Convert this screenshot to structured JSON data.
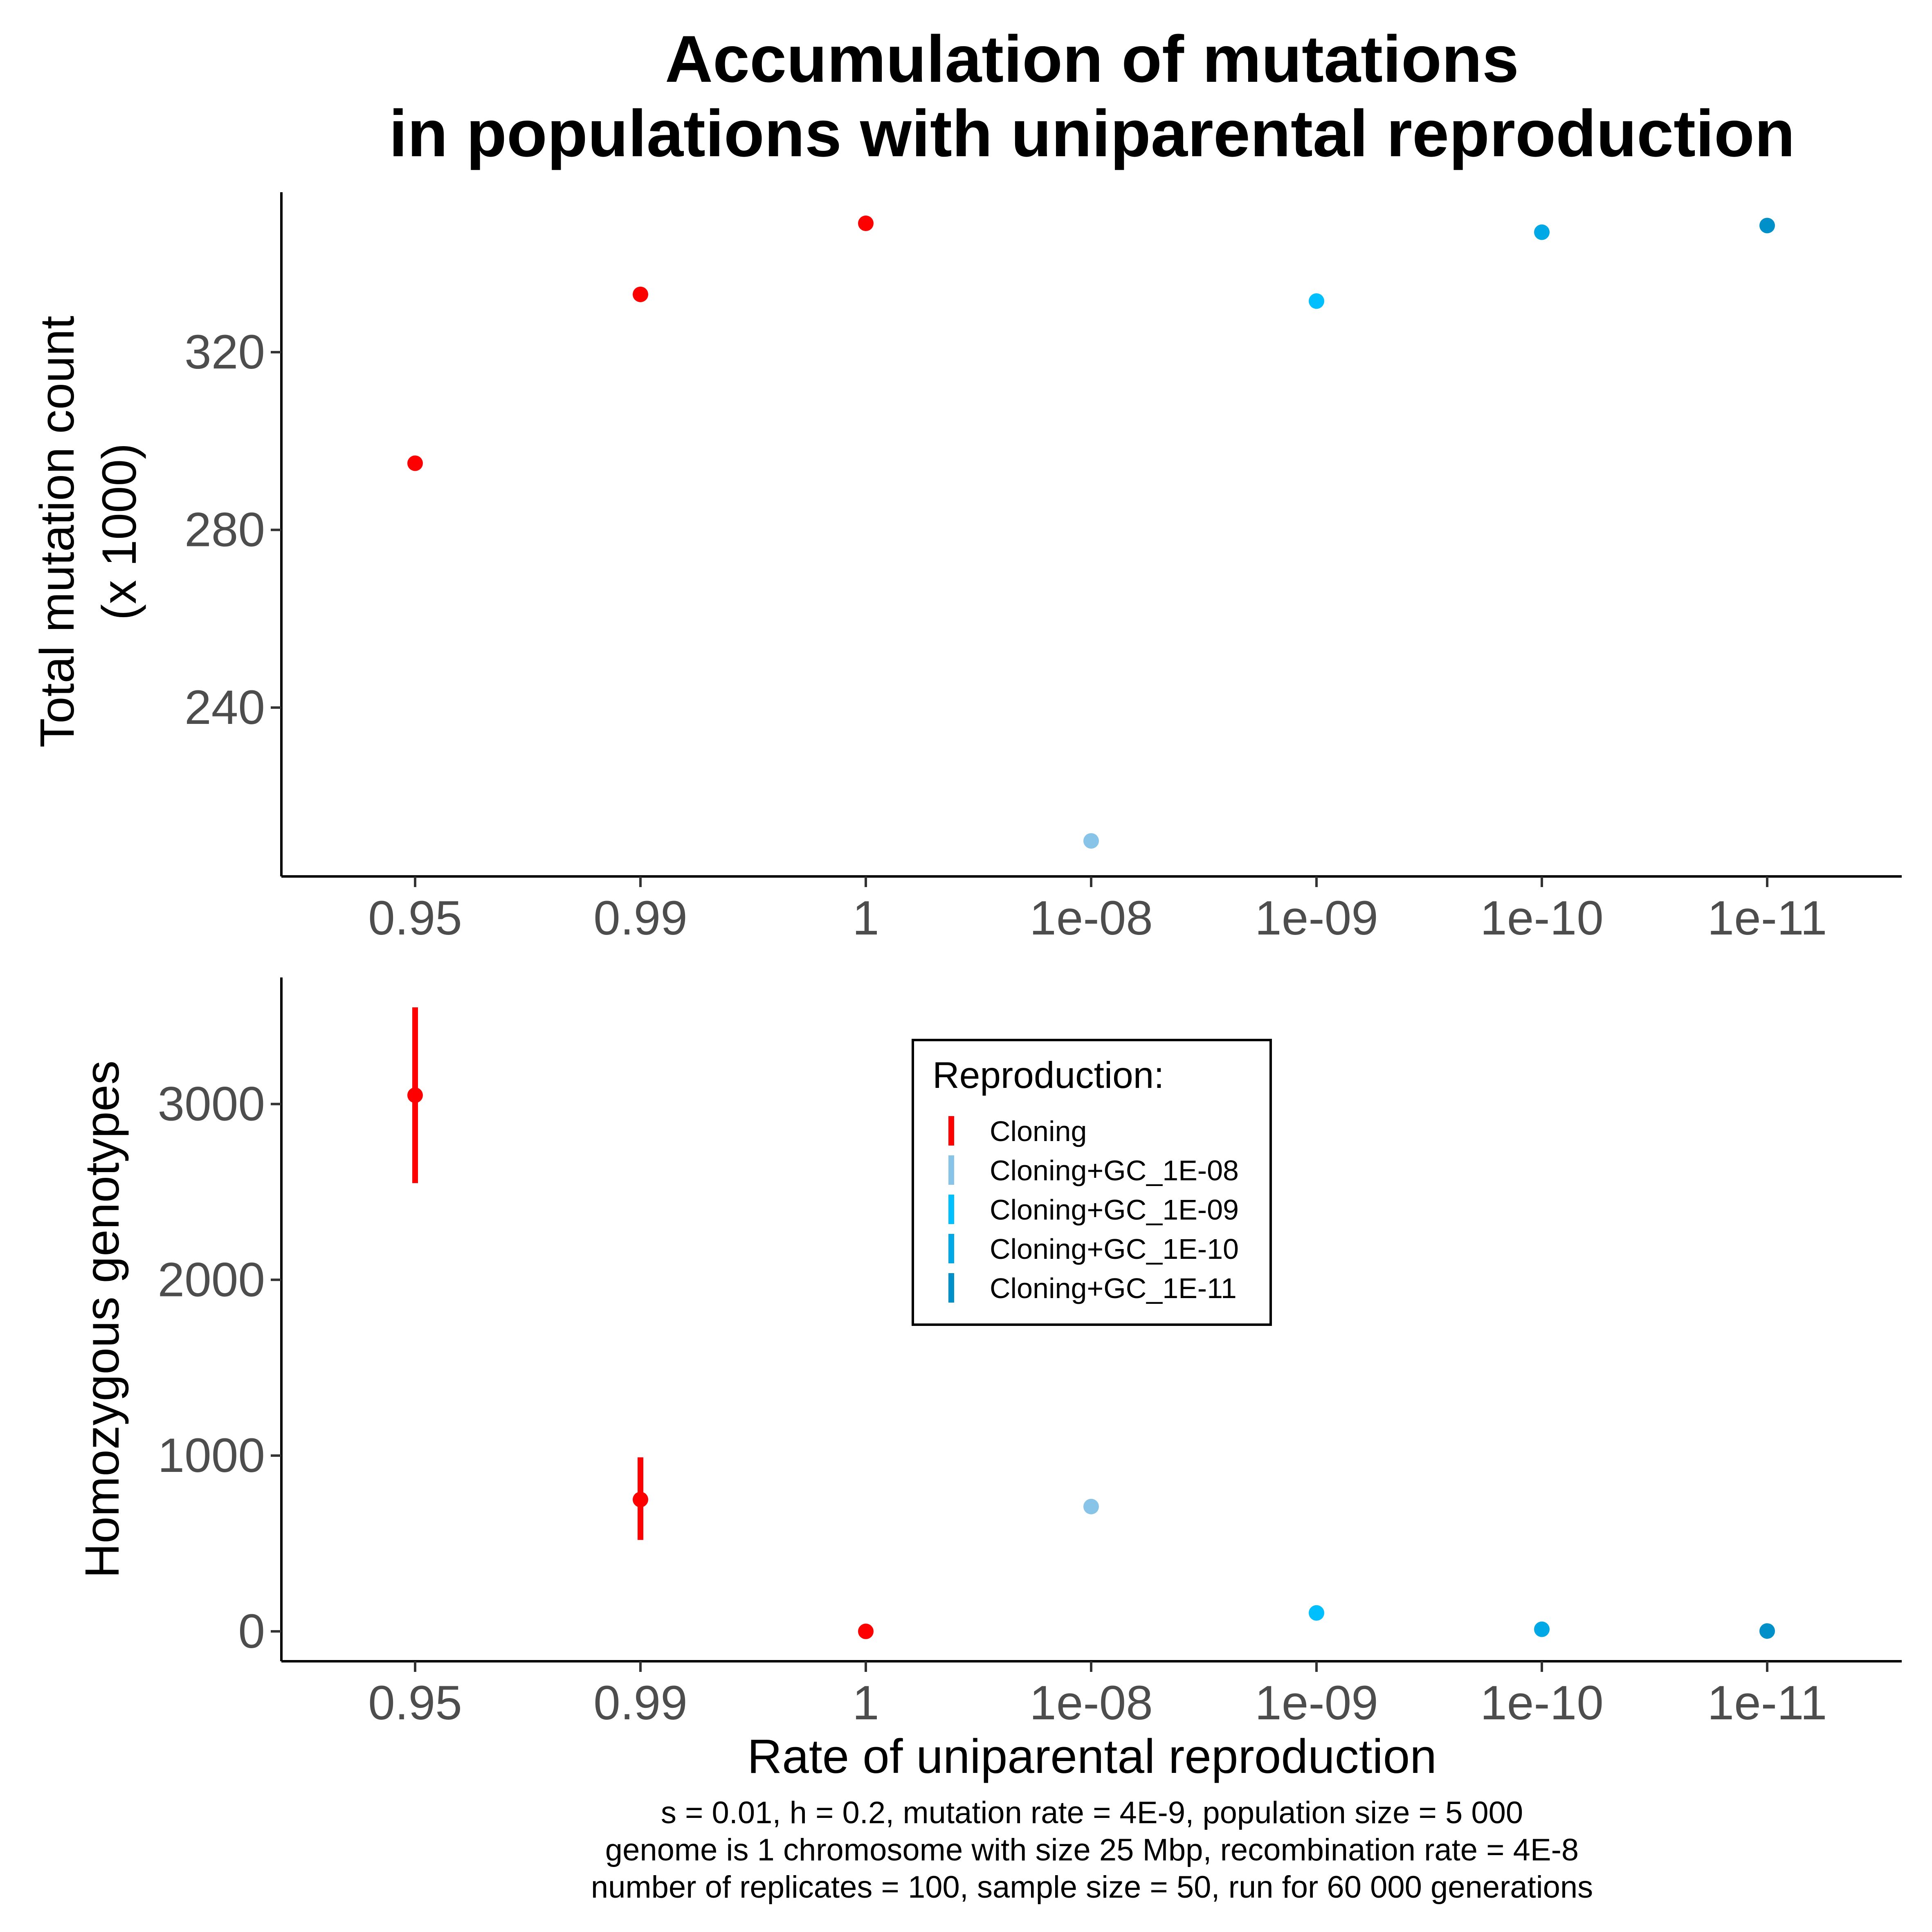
{
  "title": [
    "Accumulation of mutations",
    "in populations with uniparental reproduction"
  ],
  "colors": {
    "Cloning": "#ff0000",
    "Cloning+GC_1E-08": "#87c4e7",
    "Cloning+GC_1E-09": "#00bfff",
    "Cloning+GC_1E-10": "#00a8e6",
    "Cloning+GC_1E-11": "#0090c9"
  },
  "legend": {
    "title": "Reproduction:",
    "entries": [
      "Cloning",
      "Cloning+GC_1E-08",
      "Cloning+GC_1E-09",
      "Cloning+GC_1E-10",
      "Cloning+GC_1E-11"
    ],
    "placement": "inside bottom panel, upper center"
  },
  "xlabel": "Rate of uniparental reproduction",
  "caption": [
    "s = 0.01, h = 0.2, mutation rate = 4E-9, population size = 5 000",
    "genome is 1 chromosome with size 25 Mbp, recombination rate = 4E-8",
    "number of replicates = 100, sample size = 50, run for 60 000 generations"
  ],
  "chart_data": [
    {
      "type": "scatter",
      "panel": "top",
      "ylabel": [
        "Total mutation count",
        "(x 1000)"
      ],
      "categories": [
        "0.95",
        "0.99",
        "1",
        "1e-08",
        "1e-09",
        "1e-10",
        "1e-11"
      ],
      "yticks": [
        240,
        280,
        320
      ],
      "ylim": [
        202,
        356
      ],
      "grid": false,
      "points": [
        {
          "x": "0.95",
          "y": 295,
          "group": "Cloning"
        },
        {
          "x": "0.99",
          "y": 333,
          "group": "Cloning"
        },
        {
          "x": "1",
          "y": 349,
          "group": "Cloning"
        },
        {
          "x": "1e-08",
          "y": 210,
          "group": "Cloning+GC_1E-08"
        },
        {
          "x": "1e-09",
          "y": 331.5,
          "group": "Cloning+GC_1E-09"
        },
        {
          "x": "1e-10",
          "y": 347,
          "group": "Cloning+GC_1E-10"
        },
        {
          "x": "1e-11",
          "y": 348.5,
          "group": "Cloning+GC_1E-11"
        }
      ]
    },
    {
      "type": "scatter",
      "panel": "bottom",
      "ylabel": "Homozygous genotypes",
      "categories": [
        "0.95",
        "0.99",
        "1",
        "1e-08",
        "1e-09",
        "1e-10",
        "1e-11"
      ],
      "yticks": [
        0,
        1000,
        2000,
        3000
      ],
      "ylim": [
        -170,
        3720
      ],
      "grid": false,
      "points": [
        {
          "x": "0.95",
          "y": 3050,
          "low": 2550,
          "high": 3550,
          "group": "Cloning"
        },
        {
          "x": "0.99",
          "y": 750,
          "low": 520,
          "high": 990,
          "group": "Cloning"
        },
        {
          "x": "1",
          "y": 0,
          "group": "Cloning"
        },
        {
          "x": "1e-08",
          "y": 710,
          "group": "Cloning+GC_1E-08"
        },
        {
          "x": "1e-09",
          "y": 105,
          "group": "Cloning+GC_1E-09"
        },
        {
          "x": "1e-10",
          "y": 12,
          "group": "Cloning+GC_1E-10"
        },
        {
          "x": "1e-11",
          "y": 2,
          "group": "Cloning+GC_1E-11"
        }
      ]
    }
  ]
}
